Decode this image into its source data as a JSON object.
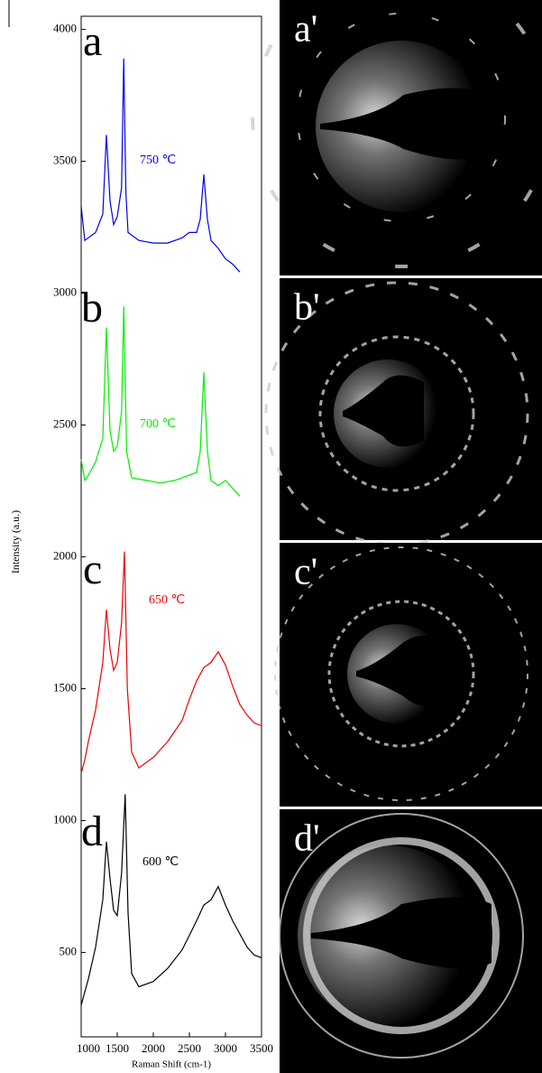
{
  "chart_data": {
    "type": "line",
    "x_label": "Raman Shift (cm-1)",
    "y_label": "Intensity (a.u.)",
    "xlim": [
      1000,
      3500
    ],
    "xticks": [
      1000,
      1500,
      2000,
      2500,
      3000,
      3500
    ],
    "ylim": [
      180,
      4050
    ],
    "yticks": [
      500,
      1000,
      1500,
      2000,
      2500,
      3000,
      3500,
      4000
    ],
    "panel_labels": [
      "a",
      "b",
      "c",
      "d"
    ],
    "series": [
      {
        "name": "750 ℃",
        "color": "#0000ee",
        "x": [
          1000,
          1050,
          1100,
          1200,
          1300,
          1350,
          1400,
          1450,
          1500,
          1560,
          1590,
          1620,
          1650,
          1800,
          2000,
          2200,
          2400,
          2500,
          2600,
          2650,
          2700,
          2750,
          2800,
          2900,
          3000,
          3100,
          3200
        ],
        "y": [
          3330,
          3200,
          3210,
          3230,
          3300,
          3600,
          3350,
          3260,
          3290,
          3400,
          3890,
          3380,
          3230,
          3200,
          3190,
          3190,
          3210,
          3230,
          3230,
          3280,
          3450,
          3280,
          3200,
          3170,
          3130,
          3110,
          3080
        ]
      },
      {
        "name": "700 ℃",
        "color": "#00ee00",
        "x": [
          1000,
          1050,
          1100,
          1200,
          1300,
          1350,
          1400,
          1450,
          1500,
          1560,
          1590,
          1630,
          1700,
          1900,
          2100,
          2300,
          2500,
          2600,
          2650,
          2700,
          2750,
          2800,
          2900,
          3000,
          3100,
          3200
        ],
        "y": [
          2370,
          2290,
          2310,
          2360,
          2450,
          2870,
          2480,
          2400,
          2420,
          2550,
          2950,
          2400,
          2300,
          2290,
          2280,
          2290,
          2310,
          2320,
          2400,
          2700,
          2400,
          2290,
          2270,
          2290,
          2260,
          2230
        ]
      },
      {
        "name": "650 ℃",
        "color": "#ee0000",
        "x": [
          1000,
          1050,
          1100,
          1200,
          1300,
          1350,
          1400,
          1450,
          1500,
          1560,
          1600,
          1640,
          1700,
          1800,
          2000,
          2200,
          2400,
          2500,
          2600,
          2700,
          2800,
          2900,
          3000,
          3100,
          3200,
          3300,
          3400,
          3500
        ],
        "y": [
          1180,
          1230,
          1300,
          1420,
          1600,
          1800,
          1650,
          1570,
          1600,
          1750,
          2020,
          1500,
          1260,
          1200,
          1240,
          1300,
          1380,
          1460,
          1530,
          1580,
          1600,
          1640,
          1590,
          1510,
          1440,
          1400,
          1370,
          1360
        ]
      },
      {
        "name": "600 ℃",
        "color": "#000000",
        "x": [
          1000,
          1050,
          1100,
          1200,
          1300,
          1350,
          1400,
          1450,
          1500,
          1560,
          1610,
          1650,
          1700,
          1800,
          2000,
          2200,
          2400,
          2600,
          2700,
          2800,
          2900,
          3000,
          3100,
          3200,
          3300,
          3400,
          3500
        ],
        "y": [
          300,
          350,
          400,
          520,
          700,
          920,
          780,
          660,
          640,
          800,
          1100,
          650,
          420,
          370,
          390,
          440,
          510,
          620,
          680,
          700,
          750,
          680,
          620,
          570,
          520,
          490,
          480
        ]
      }
    ]
  },
  "images": [
    {
      "label": "a'"
    },
    {
      "label": "b'"
    },
    {
      "label": "c'"
    },
    {
      "label": "d'"
    }
  ]
}
